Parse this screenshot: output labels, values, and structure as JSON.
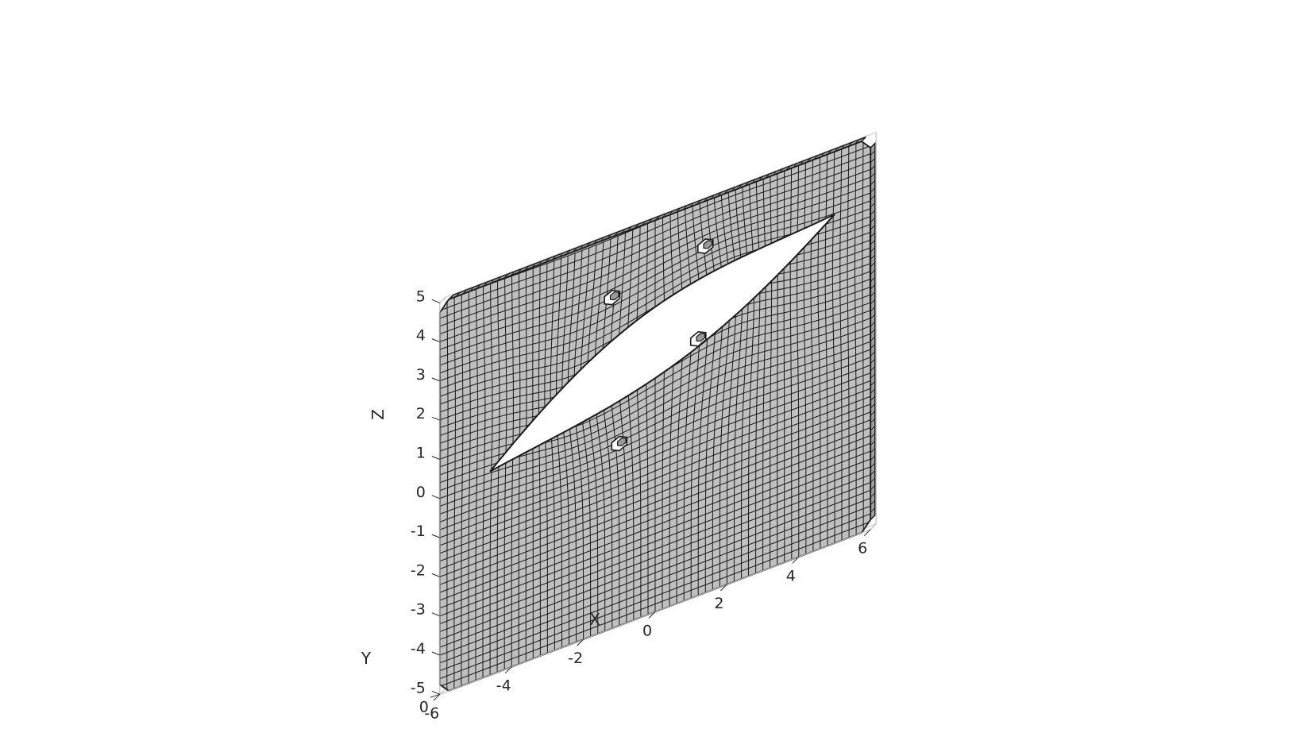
{
  "chart_data": {
    "type": "surface",
    "title": "",
    "xlabel": "X",
    "ylabel": "Y",
    "zlabel": "Z",
    "xlim": [
      -6,
      6
    ],
    "ylim": [
      0,
      0.5
    ],
    "zlim": [
      -5,
      5
    ],
    "x_ticks": [
      "-6",
      "-4",
      "-2",
      "0",
      "2",
      "4",
      "6"
    ],
    "y_ticks": [
      "0"
    ],
    "z_ticks": [
      "-5",
      "-4",
      "-3",
      "-2",
      "-1",
      "0",
      "1",
      "2",
      "3",
      "4",
      "5"
    ],
    "grid": false,
    "box": true,
    "colors": {
      "face": "#c0c0c0",
      "edge": "#1a1a1a",
      "axis": "#262626"
    },
    "mesh": {
      "element": "hexahedral",
      "plate": {
        "x": [
          -6,
          6
        ],
        "z": [
          -5,
          5
        ]
      },
      "cutout": "lens-shaped opening with 4 small holes"
    }
  }
}
